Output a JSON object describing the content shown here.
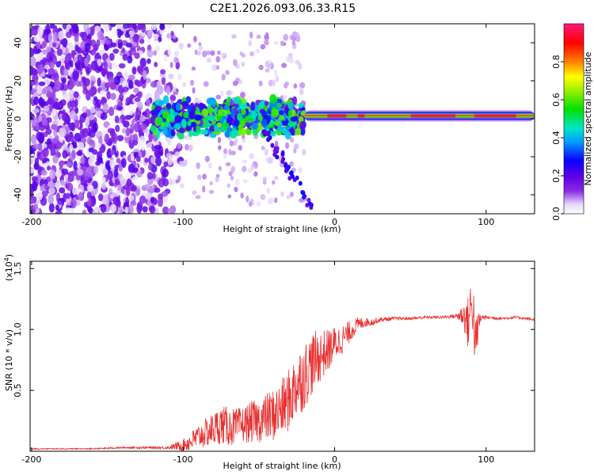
{
  "title": "C2E1.2026.093.06.33.R15",
  "chart_data": [
    {
      "type": "heatmap",
      "xlabel": "Height of straight line (km)",
      "ylabel": "Frequency (Hz)",
      "xlim": [
        -201,
        132
      ],
      "ylim": [
        -50,
        50
      ],
      "xticks": [
        {
          "value": -200,
          "label": "-200"
        },
        {
          "value": -100,
          "label": "-100"
        },
        {
          "value": 0,
          "label": "0"
        },
        {
          "value": 100,
          "label": "100"
        }
      ],
      "yticks": [
        {
          "value": -40,
          "label": "-40"
        },
        {
          "value": -20,
          "label": "-20"
        },
        {
          "value": 0,
          "label": "0"
        },
        {
          "value": 20,
          "label": "20"
        },
        {
          "value": 40,
          "label": "40"
        }
      ],
      "colorbar": {
        "label": "Normalized spectral amplitude",
        "range": [
          0,
          1
        ],
        "ticks": [
          {
            "value": 0,
            "label": "0.0"
          },
          {
            "value": 0.2,
            "label": "0.2"
          },
          {
            "value": 0.4,
            "label": "0.4"
          },
          {
            "value": 0.6,
            "label": "0.6"
          },
          {
            "value": 0.8,
            "label": "0.8"
          }
        ]
      },
      "features": [
        {
          "region": "noise",
          "x_range": [
            -201,
            -105
          ],
          "freq_range": [
            -50,
            50
          ],
          "amplitude": 0.1
        },
        {
          "region": "transition",
          "x_range": [
            -120,
            -20
          ],
          "freq_range": [
            -10,
            10
          ],
          "amplitude": 0.3
        },
        {
          "region": "carrier",
          "x_range": [
            -20,
            132
          ],
          "freq_center": 1.5,
          "amplitude": 0.95
        }
      ]
    },
    {
      "type": "line",
      "xlabel": "Height of straight line (km)",
      "ylabel": "SNR (10 * v/v)",
      "y_scale_label": "(x10",
      "y_scale_exp": "4",
      "y_scale_close": ")",
      "xlim": [
        -201,
        132
      ],
      "ylim": [
        0,
        1.56
      ],
      "xticks": [
        {
          "value": -200,
          "label": "-200"
        },
        {
          "value": -100,
          "label": "-100"
        },
        {
          "value": 0,
          "label": "0"
        },
        {
          "value": 100,
          "label": "100"
        }
      ],
      "yticks": [
        {
          "value": 0.5,
          "label": "0.5"
        },
        {
          "value": 1.0,
          "label": "1.0"
        },
        {
          "value": 1.5,
          "label": "1.5"
        }
      ],
      "series": [
        {
          "name": "SNR",
          "color": "#e83030",
          "x": [
            -201,
            -180,
            -160,
            -140,
            -120,
            -110,
            -100,
            -95,
            -90,
            -85,
            -80,
            -75,
            -70,
            -65,
            -60,
            -55,
            -50,
            -45,
            -40,
            -35,
            -30,
            -25,
            -20,
            -15,
            -10,
            -5,
            0,
            5,
            10,
            15,
            20,
            25,
            30,
            40,
            50,
            60,
            70,
            80,
            85,
            88,
            91,
            93,
            95,
            97,
            100,
            110,
            120,
            132
          ],
          "y": [
            0.02,
            0.02,
            0.02,
            0.03,
            0.03,
            0.03,
            0.05,
            0.08,
            0.12,
            0.15,
            0.18,
            0.22,
            0.2,
            0.2,
            0.22,
            0.24,
            0.25,
            0.28,
            0.3,
            0.35,
            0.42,
            0.55,
            0.62,
            0.72,
            0.78,
            0.82,
            0.88,
            0.92,
            0.98,
            1.04,
            1.06,
            1.06,
            1.08,
            1.09,
            1.09,
            1.1,
            1.1,
            1.11,
            1.12,
            1.05,
            1.25,
            0.85,
            1.05,
            1.1,
            1.1,
            1.09,
            1.1,
            1.08
          ],
          "variability": [
            0.005,
            0.005,
            0.005,
            0.008,
            0.01,
            0.012,
            0.05,
            0.08,
            0.1,
            0.12,
            0.14,
            0.16,
            0.16,
            0.15,
            0.15,
            0.17,
            0.18,
            0.2,
            0.22,
            0.24,
            0.26,
            0.28,
            0.28,
            0.26,
            0.22,
            0.18,
            0.15,
            0.12,
            0.09,
            0.06,
            0.04,
            0.03,
            0.02,
            0.015,
            0.012,
            0.012,
            0.012,
            0.02,
            0.1,
            0.22,
            0.28,
            0.24,
            0.12,
            0.02,
            0.015,
            0.012,
            0.012,
            0.012
          ]
        }
      ]
    }
  ]
}
